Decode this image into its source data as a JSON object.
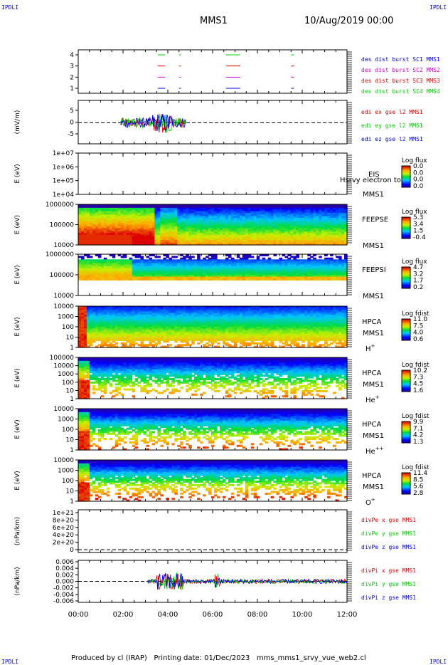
{
  "header": {
    "spacecraft": "MMS1",
    "date": "10/Aug/2019 00:00",
    "corner_label": "IPDLI"
  },
  "footer": {
    "produced_by": "Produced by cl (IRAP)",
    "printing_date": "Printing date: 01/Dec/2023",
    "filename": "mms_mms1_srvy_vue_web2.cl"
  },
  "colors": {
    "red": "#e00000",
    "green": "#00cc00",
    "blue": "#0000e0",
    "magenta": "#cc00cc"
  },
  "chart_data": [
    {
      "type": "line",
      "panel": "burst",
      "yticks": [
        "4",
        "3",
        "2",
        "1"
      ],
      "x_ticks": [
        "00:00",
        "02:00",
        "04:00",
        "06:00",
        "08:00",
        "10:00",
        "12:00"
      ],
      "series": [
        {
          "name": "des dist burst SC1 MMS1",
          "color": "#0000e0",
          "level": 1,
          "intervals": [
            [
              3.55,
              3.85
            ],
            [
              4.5,
              4.55
            ],
            [
              6.6,
              7.2
            ],
            [
              9.5,
              9.6
            ]
          ]
        },
        {
          "name": "des dist burst SC2 MMS2",
          "color": "#cc00cc",
          "level": 2,
          "intervals": [
            [
              3.55,
              3.85
            ],
            [
              4.5,
              4.55
            ],
            [
              6.6,
              7.2
            ],
            [
              9.5,
              9.6
            ]
          ]
        },
        {
          "name": "des dist burst SC3 MMS3",
          "color": "#e00000",
          "level": 3,
          "intervals": [
            [
              3.55,
              3.85
            ],
            [
              4.5,
              4.55
            ],
            [
              6.6,
              7.2
            ],
            [
              9.5,
              9.6
            ]
          ]
        },
        {
          "name": "des dist burst SC4 MMS4",
          "color": "#00cc00",
          "level": 4,
          "intervals": [
            [
              3.55,
              3.85
            ],
            [
              4.5,
              4.55
            ],
            [
              6.6,
              7.2
            ],
            [
              9.5,
              9.6
            ]
          ]
        }
      ]
    },
    {
      "type": "line",
      "panel": "edi",
      "ylabel": "(mV/m)",
      "yticks": [
        "5",
        "0",
        "-5"
      ],
      "ylim": [
        -8,
        8
      ],
      "series": [
        {
          "name": "edi ex gse l2 MMS1",
          "color": "#e00000"
        },
        {
          "name": "edi ey gse l2 MMS1",
          "color": "#00cc00"
        },
        {
          "name": "edi ez gse l2 MMS1",
          "color": "#0000e0"
        }
      ],
      "active_range_hours": [
        1.9,
        4.8
      ]
    },
    {
      "type": "heatmap",
      "panel": "eis",
      "ylabel": "E (eV)",
      "yticks": [
        "1e+07",
        "1e+06",
        "1e+05",
        "1e+04"
      ],
      "instrument": "EIS",
      "spacecraft": "MMS1",
      "overlay_text": "Hsrvy electron to",
      "colorbar": {
        "title": "Log flux",
        "ticks": [
          "0.0",
          "0.0",
          "0.0",
          "0.0"
        ]
      },
      "empty": true
    },
    {
      "type": "heatmap",
      "panel": "feeps-e",
      "ylabel": "E (eV)",
      "yticks": [
        "1000000",
        "100000",
        "10000"
      ],
      "instrument": "FEEPSE",
      "spacecraft": "MMS1",
      "colorbar": {
        "title": "Log flux",
        "ticks": [
          "5.3",
          "3.4",
          "1.5",
          "-0.4"
        ]
      }
    },
    {
      "type": "heatmap",
      "panel": "feeps-i",
      "ylabel": "E (eV)",
      "yticks": [
        "1000000",
        "100000",
        "10000"
      ],
      "instrument": "FEEPSI",
      "spacecraft": "MMS1",
      "colorbar": {
        "title": "Log flux",
        "ticks": [
          "4.7",
          "3.2",
          "1.7",
          "0.2"
        ]
      }
    },
    {
      "type": "heatmap",
      "panel": "hpca-h",
      "ylabel": "E (eV)",
      "yticks": [
        "10000",
        "1000",
        "100",
        "10",
        "1"
      ],
      "instrument": "HPCA",
      "spacecraft": "MMS1",
      "species": "H",
      "species_sup": "+",
      "colorbar": {
        "title": "Log fdist",
        "ticks": [
          "11.0",
          "7.5",
          "4.0",
          "0.6"
        ]
      }
    },
    {
      "type": "heatmap",
      "panel": "hpca-he",
      "ylabel": "E (eV)",
      "yticks": [
        "100000",
        "10000",
        "1000",
        "100",
        "10",
        "1"
      ],
      "instrument": "HPCA",
      "spacecraft": "MMS1",
      "species": "He",
      "species_sup": "+",
      "colorbar": {
        "title": "Log fdist",
        "ticks": [
          "10.2",
          "7.3",
          "4.5",
          "1.6"
        ]
      }
    },
    {
      "type": "heatmap",
      "panel": "hpca-hepp",
      "ylabel": "E (eV)",
      "yticks": [
        "10000",
        "1000",
        "100",
        "10",
        "1"
      ],
      "instrument": "HPCA",
      "spacecraft": "MMS1",
      "species": "He",
      "species_sup": "++",
      "colorbar": {
        "title": "Log fdist",
        "ticks": [
          "9.9",
          "7.1",
          "4.2",
          "1.3"
        ]
      }
    },
    {
      "type": "heatmap",
      "panel": "hpca-o",
      "ylabel": "E (eV)",
      "yticks": [
        "10000",
        "1000",
        "100",
        "10",
        "1"
      ],
      "instrument": "HPCA",
      "spacecraft": "MMS1",
      "species": "O",
      "species_sup": "+",
      "colorbar": {
        "title": "Log fdist",
        "ticks": [
          "11.4",
          "8.5",
          "5.6",
          "2.8"
        ]
      }
    },
    {
      "type": "line",
      "panel": "divpe",
      "ylabel": "(nPa/km)",
      "yticks": [
        "1e+21",
        "8e+20",
        "6e+20",
        "4e+20",
        "2e+20",
        "0"
      ],
      "series": [
        {
          "name": "divPe x gse MMS1",
          "color": "#e00000"
        },
        {
          "name": "divPe y gse MMS1",
          "color": "#00cc00"
        },
        {
          "name": "divPe z gse MMS1",
          "color": "#0000e0"
        }
      ]
    },
    {
      "type": "line",
      "panel": "divpi",
      "ylabel": "(nPa/km)",
      "yticks": [
        "0.006",
        "0.004",
        "0.002",
        "0.000",
        "-0.002",
        "-0.004",
        "-0.006"
      ],
      "ylim": [
        -0.0065,
        0.0065
      ],
      "series": [
        {
          "name": "divPi x gse MMS1",
          "color": "#e00000"
        },
        {
          "name": "divPi y gse MMS1",
          "color": "#00cc00"
        },
        {
          "name": "divPi z gse MMS1",
          "color": "#0000e0"
        }
      ],
      "active_range_hours": [
        3.1,
        12.0
      ]
    }
  ]
}
